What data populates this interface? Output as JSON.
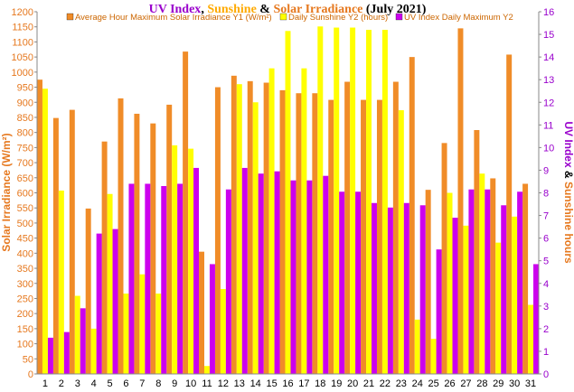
{
  "chart_data": {
    "type": "bar",
    "title_parts": [
      {
        "text": "UV Index",
        "color": "#9900cc"
      },
      {
        "text": ", ",
        "color": "#000000"
      },
      {
        "text": "Sunshine",
        "color": "#ffaa00"
      },
      {
        "text": " & ",
        "color": "#000000"
      },
      {
        "text": "Solar Irradiance",
        "color": "#e6781e"
      },
      {
        "text": " (July 2021)",
        "color": "#000000"
      }
    ],
    "ylabel_left": "Solar Irradiance (W/m²)",
    "ylabel_right_parts": [
      {
        "text": "UV Index",
        "color": "#9900cc"
      },
      {
        "text": " & ",
        "color": "#000000"
      },
      {
        "text": "Sunshine hours",
        "color": "#e6781e"
      }
    ],
    "y1lim": [
      0,
      1200
    ],
    "y1_step": 50,
    "y2lim": [
      0,
      16
    ],
    "y2_step": 1,
    "grid": false,
    "legend_placement": "top",
    "categories": [
      "1",
      "2",
      "3",
      "4",
      "5",
      "6",
      "7",
      "8",
      "9",
      "10",
      "11",
      "12",
      "13",
      "14",
      "15",
      "16",
      "17",
      "18",
      "19",
      "20",
      "21",
      "22",
      "23",
      "24",
      "25",
      "26",
      "27",
      "28",
      "29",
      "30",
      "31"
    ],
    "series": [
      {
        "name": "Average Hour Maximum Solar Irradiance Y1 (W/m²)",
        "axis": "y1",
        "color": "#f08c28",
        "values": [
          975,
          848,
          875,
          548,
          770,
          913,
          862,
          830,
          892,
          1068,
          405,
          950,
          988,
          970,
          965,
          940,
          930,
          930,
          908,
          968,
          908,
          908,
          968,
          1050,
          610,
          765,
          1145,
          808,
          648,
          1058,
          630
        ]
      },
      {
        "name": "Daily Sunshine Y2 (hours)",
        "axis": "y2",
        "color": "#ffff00",
        "values": [
          12.6,
          8.1,
          3.45,
          2,
          7.95,
          3.55,
          4.4,
          3.55,
          10.1,
          9.95,
          0.35,
          3.75,
          12.8,
          12,
          13.5,
          15.15,
          13.5,
          15.35,
          15.3,
          15.3,
          15.2,
          15.2,
          11.65,
          2.4,
          1.55,
          8,
          6.55,
          8.85,
          5.8,
          6.95,
          3.05
        ]
      },
      {
        "name": "UV Index Daily Maximum Y2",
        "axis": "y2",
        "color": "#cc00ee",
        "values": [
          1.6,
          1.85,
          2.9,
          6.2,
          6.4,
          8.4,
          8.4,
          8.3,
          8.4,
          9.1,
          4.85,
          8.15,
          9.1,
          8.85,
          8.95,
          8.55,
          8.55,
          8.75,
          8.05,
          8.05,
          7.55,
          7.35,
          7.55,
          7.45,
          5.5,
          6.9,
          8.15,
          8.15,
          7.45,
          8.05,
          4.85
        ]
      }
    ]
  }
}
